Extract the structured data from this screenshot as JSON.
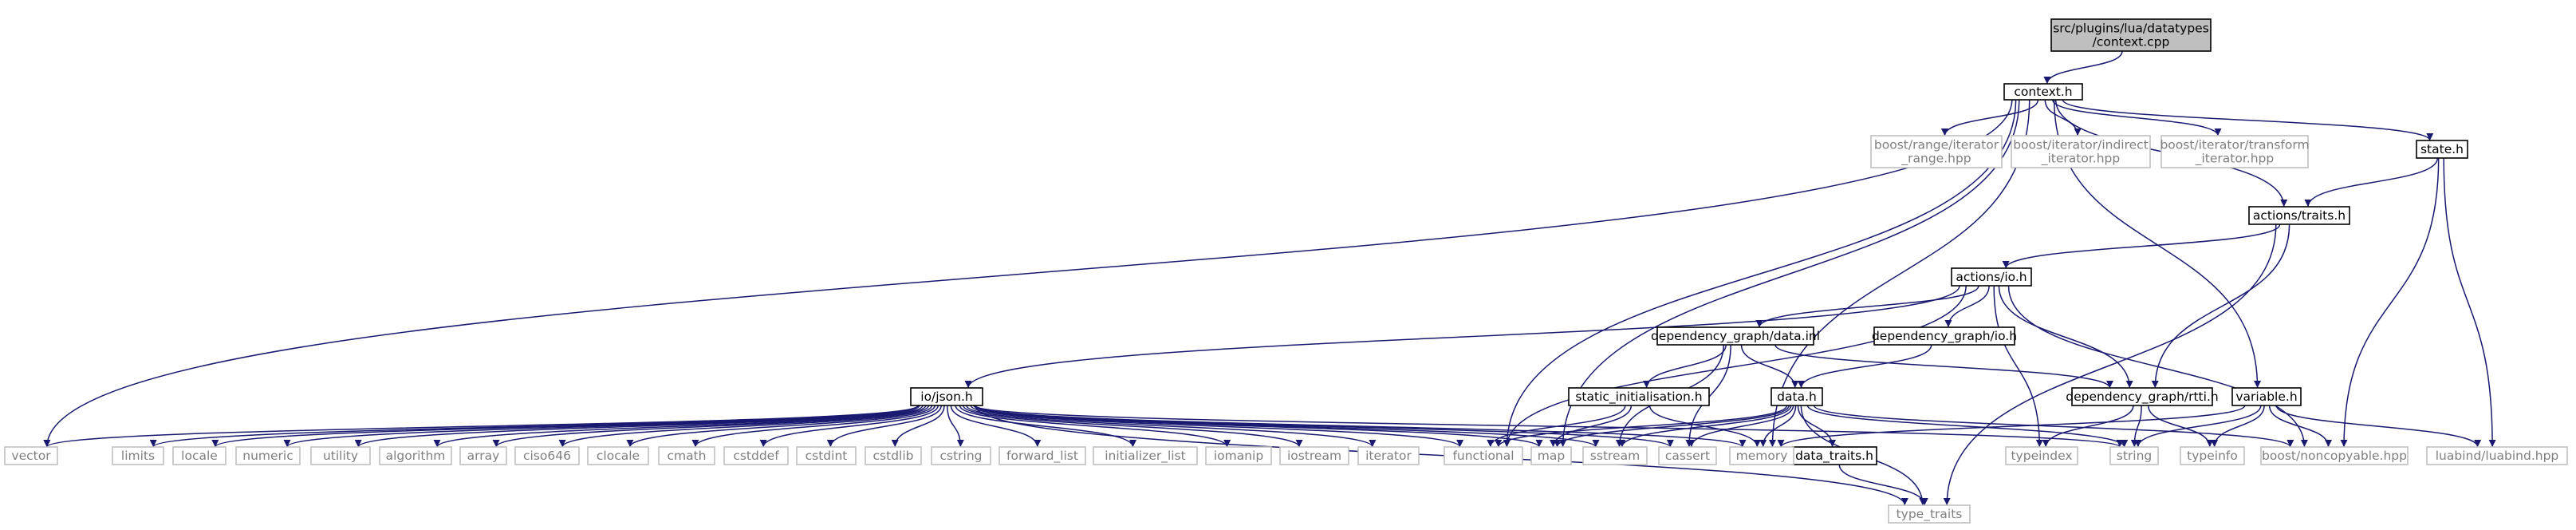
{
  "colors": {
    "edge": "#191970",
    "node_border": "#000000",
    "external_border": "#bfbfbf",
    "root_fill": "#bfbfbf",
    "node_fill": "#ffffff",
    "text": "#000000",
    "external_text": "#7f7f7f"
  },
  "nodes": [
    {
      "id": "root",
      "lines": [
        "src/plugins/lua/datatypes",
        "/context.cpp"
      ],
      "kind": "root"
    },
    {
      "id": "context_h",
      "lines": [
        "context.h"
      ],
      "kind": "internal"
    },
    {
      "id": "boost_range",
      "lines": [
        "boost/range/iterator",
        "_range.hpp"
      ],
      "kind": "external"
    },
    {
      "id": "boost_indirect",
      "lines": [
        "boost/iterator/indirect",
        "_iterator.hpp"
      ],
      "kind": "external"
    },
    {
      "id": "boost_transform",
      "lines": [
        "boost/iterator/transform",
        "_iterator.hpp"
      ],
      "kind": "external"
    },
    {
      "id": "state_h",
      "lines": [
        "state.h"
      ],
      "kind": "internal"
    },
    {
      "id": "actions_traits",
      "lines": [
        "actions/traits.h"
      ],
      "kind": "internal"
    },
    {
      "id": "actions_io",
      "lines": [
        "actions/io.h"
      ],
      "kind": "internal"
    },
    {
      "id": "dg_data_inl",
      "lines": [
        "dependency_graph/data.inl"
      ],
      "kind": "internal"
    },
    {
      "id": "dg_io",
      "lines": [
        "dependency_graph/io.h"
      ],
      "kind": "internal"
    },
    {
      "id": "io_json",
      "lines": [
        "io/json.h"
      ],
      "kind": "internal"
    },
    {
      "id": "static_init",
      "lines": [
        "static_initialisation.h"
      ],
      "kind": "internal"
    },
    {
      "id": "data_h",
      "lines": [
        "data.h"
      ],
      "kind": "internal"
    },
    {
      "id": "dg_rtti",
      "lines": [
        "dependency_graph/rtti.h"
      ],
      "kind": "internal"
    },
    {
      "id": "variable_h",
      "lines": [
        "variable.h"
      ],
      "kind": "internal"
    },
    {
      "id": "data_traits",
      "lines": [
        "data_traits.h"
      ],
      "kind": "internal"
    },
    {
      "id": "vector",
      "lines": [
        "vector"
      ],
      "kind": "external"
    },
    {
      "id": "limits",
      "lines": [
        "limits"
      ],
      "kind": "external"
    },
    {
      "id": "locale",
      "lines": [
        "locale"
      ],
      "kind": "external"
    },
    {
      "id": "numeric",
      "lines": [
        "numeric"
      ],
      "kind": "external"
    },
    {
      "id": "utility",
      "lines": [
        "utility"
      ],
      "kind": "external"
    },
    {
      "id": "algorithm",
      "lines": [
        "algorithm"
      ],
      "kind": "external"
    },
    {
      "id": "array",
      "lines": [
        "array"
      ],
      "kind": "external"
    },
    {
      "id": "ciso646",
      "lines": [
        "ciso646"
      ],
      "kind": "external"
    },
    {
      "id": "clocale",
      "lines": [
        "clocale"
      ],
      "kind": "external"
    },
    {
      "id": "cmath",
      "lines": [
        "cmath"
      ],
      "kind": "external"
    },
    {
      "id": "cstddef",
      "lines": [
        "cstddef"
      ],
      "kind": "external"
    },
    {
      "id": "cstdint",
      "lines": [
        "cstdint"
      ],
      "kind": "external"
    },
    {
      "id": "cstdlib",
      "lines": [
        "cstdlib"
      ],
      "kind": "external"
    },
    {
      "id": "cstring",
      "lines": [
        "cstring"
      ],
      "kind": "external"
    },
    {
      "id": "forward_list",
      "lines": [
        "forward_list"
      ],
      "kind": "external"
    },
    {
      "id": "initializer_list",
      "lines": [
        "initializer_list"
      ],
      "kind": "external"
    },
    {
      "id": "iomanip",
      "lines": [
        "iomanip"
      ],
      "kind": "external"
    },
    {
      "id": "iostream",
      "lines": [
        "iostream"
      ],
      "kind": "external"
    },
    {
      "id": "iterator",
      "lines": [
        "iterator"
      ],
      "kind": "external"
    },
    {
      "id": "functional",
      "lines": [
        "functional"
      ],
      "kind": "external"
    },
    {
      "id": "map",
      "lines": [
        "map"
      ],
      "kind": "external"
    },
    {
      "id": "sstream",
      "lines": [
        "sstream"
      ],
      "kind": "external"
    },
    {
      "id": "cassert",
      "lines": [
        "cassert"
      ],
      "kind": "external"
    },
    {
      "id": "memory",
      "lines": [
        "memory"
      ],
      "kind": "external"
    },
    {
      "id": "typeindex",
      "lines": [
        "typeindex"
      ],
      "kind": "external"
    },
    {
      "id": "string",
      "lines": [
        "string"
      ],
      "kind": "external"
    },
    {
      "id": "typeinfo",
      "lines": [
        "typeinfo"
      ],
      "kind": "external"
    },
    {
      "id": "boost_noncopyable",
      "lines": [
        "boost/noncopyable.hpp"
      ],
      "kind": "external"
    },
    {
      "id": "luabind",
      "lines": [
        "luabind/luabind.hpp"
      ],
      "kind": "external"
    },
    {
      "id": "type_traits",
      "lines": [
        "type_traits"
      ],
      "kind": "external"
    }
  ],
  "edges": [
    [
      "root",
      "context_h"
    ],
    [
      "context_h",
      "boost_range"
    ],
    [
      "context_h",
      "boost_indirect"
    ],
    [
      "context_h",
      "boost_transform"
    ],
    [
      "context_h",
      "state_h"
    ],
    [
      "context_h",
      "actions_traits"
    ],
    [
      "context_h",
      "variable_h"
    ],
    [
      "context_h",
      "vector"
    ],
    [
      "context_h",
      "functional"
    ],
    [
      "context_h",
      "map"
    ],
    [
      "context_h",
      "memory"
    ],
    [
      "state_h",
      "actions_traits"
    ],
    [
      "state_h",
      "boost_noncopyable"
    ],
    [
      "state_h",
      "luabind"
    ],
    [
      "actions_traits",
      "actions_io"
    ],
    [
      "actions_traits",
      "dg_rtti"
    ],
    [
      "actions_traits",
      "type_traits"
    ],
    [
      "actions_io",
      "dg_data_inl"
    ],
    [
      "actions_io",
      "dg_io"
    ],
    [
      "actions_io",
      "io_json"
    ],
    [
      "actions_io",
      "dg_rtti"
    ],
    [
      "actions_io",
      "functional"
    ],
    [
      "actions_io",
      "typeindex"
    ],
    [
      "actions_io",
      "boost_noncopyable"
    ],
    [
      "dg_data_inl",
      "static_init"
    ],
    [
      "dg_data_inl",
      "data_h"
    ],
    [
      "dg_data_inl",
      "dg_rtti"
    ],
    [
      "dg_data_inl",
      "sstream"
    ],
    [
      "dg_data_inl",
      "cassert"
    ],
    [
      "dg_io",
      "data_h"
    ],
    [
      "static_init",
      "functional"
    ],
    [
      "static_init",
      "map"
    ],
    [
      "static_init",
      "memory"
    ],
    [
      "data_h",
      "functional"
    ],
    [
      "data_h",
      "map"
    ],
    [
      "data_h",
      "sstream"
    ],
    [
      "data_h",
      "cassert"
    ],
    [
      "data_h",
      "memory"
    ],
    [
      "data_h",
      "data_traits"
    ],
    [
      "data_h",
      "string"
    ],
    [
      "data_h",
      "type_traits"
    ],
    [
      "data_h",
      "boost_noncopyable"
    ],
    [
      "data_traits",
      "type_traits"
    ],
    [
      "dg_rtti",
      "typeindex"
    ],
    [
      "dg_rtti",
      "string"
    ],
    [
      "dg_rtti",
      "typeinfo"
    ],
    [
      "variable_h",
      "memory"
    ],
    [
      "variable_h",
      "string"
    ],
    [
      "variable_h",
      "typeinfo"
    ],
    [
      "variable_h",
      "boost_noncopyable"
    ],
    [
      "variable_h",
      "luabind"
    ],
    [
      "io_json",
      "vector"
    ],
    [
      "io_json",
      "limits"
    ],
    [
      "io_json",
      "locale"
    ],
    [
      "io_json",
      "numeric"
    ],
    [
      "io_json",
      "utility"
    ],
    [
      "io_json",
      "algorithm"
    ],
    [
      "io_json",
      "array"
    ],
    [
      "io_json",
      "ciso646"
    ],
    [
      "io_json",
      "clocale"
    ],
    [
      "io_json",
      "cmath"
    ],
    [
      "io_json",
      "cstddef"
    ],
    [
      "io_json",
      "cstdint"
    ],
    [
      "io_json",
      "cstdlib"
    ],
    [
      "io_json",
      "cstring"
    ],
    [
      "io_json",
      "forward_list"
    ],
    [
      "io_json",
      "initializer_list"
    ],
    [
      "io_json",
      "iomanip"
    ],
    [
      "io_json",
      "iostream"
    ],
    [
      "io_json",
      "iterator"
    ],
    [
      "io_json",
      "functional"
    ],
    [
      "io_json",
      "map"
    ],
    [
      "io_json",
      "sstream"
    ],
    [
      "io_json",
      "cassert"
    ],
    [
      "io_json",
      "memory"
    ],
    [
      "io_json",
      "string"
    ],
    [
      "io_json",
      "type_traits"
    ]
  ]
}
